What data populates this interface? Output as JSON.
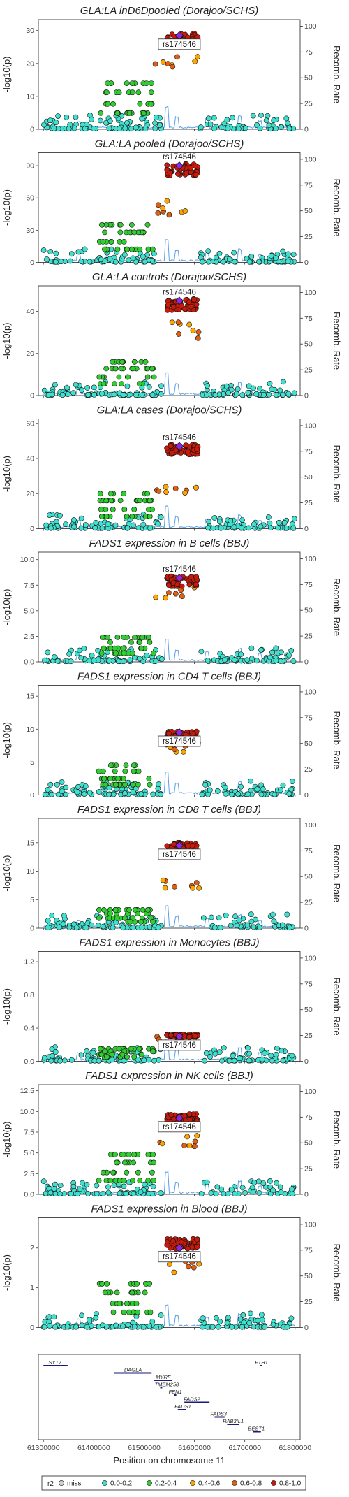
{
  "chart_data": {
    "type": "scatter",
    "xlabel": "Position on chromosome 11",
    "x_ticks": [
      61300000,
      61400000,
      61500000,
      61600000,
      61700000,
      61800000
    ],
    "x_tick_labels": [
      "61300000",
      "61400000",
      "61500000",
      "61600000",
      "61700000",
      "61800000"
    ],
    "xlim": [
      61290000,
      61810000
    ],
    "ylabel_left": "-log10(p)",
    "ylabel_right": "Recomb. Rate",
    "recomb_ticks": [
      0,
      25,
      50,
      75,
      100
    ],
    "recomb_ylim": [
      0,
      100
    ],
    "lead_snp": {
      "label": "rs174546",
      "position": 61570000
    },
    "ld_bins": [
      {
        "label": "miss",
        "color": "#cfcfcf"
      },
      {
        "label": "0.0-0.2",
        "color": "#40e0d0"
      },
      {
        "label": "0.2-0.4",
        "color": "#32cd32"
      },
      {
        "label": "0.4-0.6",
        "color": "#ffa500"
      },
      {
        "label": "0.6-0.8",
        "color": "#e06010"
      },
      {
        "label": "0.8-1.0",
        "color": "#c81a0a"
      }
    ],
    "legend_title": "r2",
    "legend_placement": "bottom",
    "panels": [
      {
        "title": "GLA:LA lnD6Dpooled (Dorajoo/SCHS)",
        "ylim": [
          0,
          32
        ],
        "y_ticks": [
          0,
          10,
          20,
          30
        ],
        "y_tick_labels": [
          "0",
          "10",
          "20",
          "30"
        ],
        "peak": 28.5,
        "green": 14,
        "orange": 22,
        "lead_y": 28.5,
        "lead_box": true
      },
      {
        "title": "GLA:LA pooled (Dorajoo/SCHS)",
        "ylim": [
          0,
          98
        ],
        "y_ticks": [
          0,
          30,
          60,
          90
        ],
        "y_tick_labels": [
          "0",
          "30",
          "60",
          "90"
        ],
        "peak": 90,
        "green": 35,
        "orange": 52,
        "lead_y": 90,
        "lead_box": false
      },
      {
        "title": "GLA:LA controls (Dorajoo/SCHS)",
        "ylim": [
          0,
          50
        ],
        "y_ticks": [
          0,
          20,
          40
        ],
        "y_tick_labels": [
          "0",
          "20",
          "40"
        ],
        "peak": 45,
        "green": 16,
        "orange": 32,
        "lead_y": 45,
        "lead_box": false
      },
      {
        "title": "GLA:LA cases (Dorajoo/SCHS)",
        "ylim": [
          0,
          60
        ],
        "y_ticks": [
          0,
          20,
          40,
          60
        ],
        "y_tick_labels": [
          "0",
          "20",
          "40",
          "60"
        ],
        "peak": 47,
        "green": 20,
        "orange": 22,
        "lead_y": 47,
        "lead_box": false
      },
      {
        "title": "FADS1 expression in B cells (BBJ)",
        "ylim": [
          0,
          10.3
        ],
        "y_ticks": [
          0,
          2.5,
          5,
          7.5,
          10
        ],
        "y_tick_labels": [
          "0.0",
          "2.5",
          "5.0",
          "7.5",
          "10.0"
        ],
        "peak": 8.2,
        "green": 2.4,
        "orange": 7.3,
        "lead_y": 8.2,
        "lead_box": false
      },
      {
        "title": "FADS1 expression in CD4 T cells (BBJ)",
        "ylim": [
          0,
          16
        ],
        "y_ticks": [
          0,
          5,
          10,
          15
        ],
        "y_tick_labels": [
          "0",
          "5",
          "10",
          "15"
        ],
        "peak": 9.5,
        "green": 4.5,
        "orange": 7.5,
        "lead_y": 9.5,
        "lead_box": true
      },
      {
        "title": "FADS1 expression in CD8 T cells (BBJ)",
        "ylim": [
          0,
          18.5
        ],
        "y_ticks": [
          0,
          5,
          10,
          15
        ],
        "y_tick_labels": [
          "0",
          "5",
          "10",
          "15"
        ],
        "peak": 14.8,
        "green": 3.2,
        "orange": 7.8,
        "lead_y": 14.5,
        "lead_box": true
      },
      {
        "title": "FADS1 expression in Monocytes (BBJ)",
        "ylim": [
          0,
          1.27
        ],
        "y_ticks": [
          0,
          0.4,
          0.8,
          1.2
        ],
        "y_tick_labels": [
          "0.0",
          "0.4",
          "0.8",
          "1.2"
        ],
        "peak": 0.32,
        "green": 0.15,
        "orange": 0.28,
        "lead_y": 0.3,
        "lead_box": true
      },
      {
        "title": "FADS1 expression in NK cells (BBJ)",
        "ylim": [
          0,
          12.7
        ],
        "y_ticks": [
          0,
          2.5,
          5,
          7.5,
          10,
          12.5
        ],
        "y_tick_labels": [
          "0.0",
          "2.5",
          "5.0",
          "7.5",
          "10.0",
          "12.5"
        ],
        "peak": 9.5,
        "green": 4.8,
        "orange": 6.5,
        "lead_y": 9.2,
        "lead_box": true
      },
      {
        "title": "FADS1 expression in Blood (BBJ)",
        "ylim": [
          0,
          2.65
        ],
        "y_ticks": [
          0,
          1,
          2
        ],
        "y_tick_labels": [
          "0",
          "1",
          "2"
        ],
        "peak": 2.2,
        "green": 1.1,
        "orange": 1.6,
        "lead_y": 2.0,
        "lead_box": true
      }
    ],
    "genes": [
      {
        "name": "SYT7",
        "start": 61300000,
        "end": 61348000,
        "row": 0,
        "label_x": 61323000
      },
      {
        "name": "DAGLA",
        "start": 61440000,
        "end": 61515000,
        "row": 1,
        "label_x": 61478000
      },
      {
        "name": "MYRF",
        "start": 61520000,
        "end": 61555000,
        "row": 2,
        "label_x": 61538000
      },
      {
        "name": "TMEM258",
        "start": 61532000,
        "end": 61536000,
        "row": 3,
        "label_x": 61545000
      },
      {
        "name": "FEN1",
        "start": 61560000,
        "end": 61564000,
        "row": 4,
        "label_x": 61562000
      },
      {
        "name": "FADS2",
        "start": 61580000,
        "end": 61630000,
        "row": 5,
        "label_x": 61595000
      },
      {
        "name": "FADS1",
        "start": 61567000,
        "end": 61584000,
        "row": 6,
        "label_x": 61577000
      },
      {
        "name": "FADS3",
        "start": 61640000,
        "end": 61660000,
        "row": 7,
        "label_x": 61648000
      },
      {
        "name": "RAB3IL1",
        "start": 61665000,
        "end": 61688000,
        "row": 8,
        "label_x": 61677000
      },
      {
        "name": "BEST1",
        "start": 61717000,
        "end": 61732000,
        "row": 9,
        "label_x": 61723000
      },
      {
        "name": "FTH1",
        "start": 61731000,
        "end": 61735000,
        "row": 0,
        "label_x": 61733000
      }
    ]
  }
}
